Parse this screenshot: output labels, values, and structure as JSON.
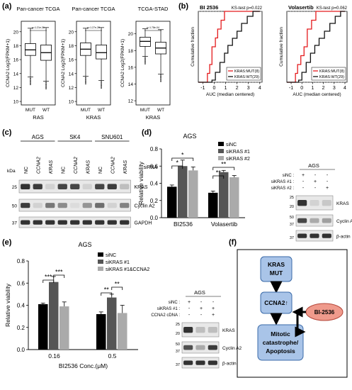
{
  "panels": {
    "a": {
      "letter": "(a)",
      "boxplots": [
        {
          "title": "Pan-cancer TCGA",
          "ylabel": "CCNA2 Log2(FPKM+1)",
          "xlabel": "RAS",
          "pvalue": "p=1.21e-31",
          "groups": [
            "MUT",
            "WT"
          ],
          "yticks": [
            "10",
            "12",
            "14",
            "16",
            "18",
            "20"
          ],
          "ylim": [
            9.5,
            21.5
          ],
          "boxes": [
            {
              "min": 13.5,
              "q1": 16.6,
              "median": 17.4,
              "q3": 18.3,
              "max": 20.5
            },
            {
              "min": 12.9,
              "q1": 15.9,
              "median": 17.0,
              "q3": 18.1,
              "max": 20.6
            }
          ]
        },
        {
          "title": "Pan-cancer TCGA",
          "ylabel": "CCNA2 Log2(FPKM+1)",
          "xlabel": "KRAS",
          "pvalue": "p=1.27e-20",
          "groups": [
            "MUT",
            "WT"
          ],
          "yticks": [
            "10",
            "12",
            "14",
            "16",
            "18",
            "20"
          ],
          "ylim": [
            9.5,
            21.5
          ],
          "boxes": [
            {
              "min": 13.6,
              "q1": 16.6,
              "median": 17.5,
              "q3": 18.4,
              "max": 20.5
            },
            {
              "min": 13.0,
              "q1": 16.1,
              "median": 17.0,
              "q3": 18.1,
              "max": 20.6
            }
          ]
        },
        {
          "title": "TCGA-STAD",
          "ylabel": "CCNA2 Log2(FPKM+1)",
          "xlabel": "KRAS",
          "pvalue": "p=1.78e-04",
          "groups": [
            "MUT",
            "WT"
          ],
          "yticks": [
            "12",
            "14",
            "16",
            "18",
            "20"
          ],
          "ylim": [
            11.5,
            21.5
          ],
          "boxes": [
            {
              "min": 17.3,
              "q1": 18.5,
              "median": 19.1,
              "q3": 19.6,
              "max": 20.6
            },
            {
              "min": 15.2,
              "q1": 17.6,
              "median": 18.3,
              "q3": 19.0,
              "max": 20.5
            }
          ]
        }
      ]
    },
    "b": {
      "letter": "(b)",
      "ylabel": "Cumulative fraction",
      "xlabel": "AUC (median centered)",
      "xticks": [
        "-1",
        "0",
        "1",
        "2",
        "3",
        "4"
      ],
      "plots": [
        {
          "title": "BI 2536",
          "test": "KS-test p=0.022",
          "legend": [
            "KRAS:MUT(8)",
            "KRAS:WT(29)"
          ],
          "series": [
            {
              "name": "KRAS:MUT(8)",
              "color": "#e41a1c",
              "x": [
                -1.4,
                -0.6,
                -0.4,
                -0.2,
                0.1,
                0.3,
                0.6,
                0.9,
                4.0
              ],
              "y": [
                0.0,
                0.125,
                0.25,
                0.5,
                0.625,
                0.75,
                0.875,
                1.0,
                1.0
              ]
            },
            {
              "name": "KRAS:WT(29)",
              "color": "#111111",
              "x": [
                -1.4,
                -0.2,
                0.1,
                0.5,
                0.9,
                1.2,
                1.6,
                2.0,
                2.4,
                2.9,
                3.4,
                4.0
              ],
              "y": [
                0.0,
                0.03,
                0.14,
                0.28,
                0.41,
                0.52,
                0.62,
                0.72,
                0.83,
                0.93,
                1.0,
                1.0
              ]
            }
          ]
        },
        {
          "title": "Volasertib",
          "test": "KS-test p=0.062",
          "legend": [
            "KRAS:MUT(8)",
            "KRAS:WT(29)"
          ],
          "series": [
            {
              "name": "KRAS:MUT(8)",
              "color": "#e41a1c",
              "x": [
                -1.4,
                -0.6,
                -0.4,
                -0.1,
                0.2,
                0.5,
                0.9,
                1.3,
                4.0
              ],
              "y": [
                0.0,
                0.125,
                0.25,
                0.375,
                0.5,
                0.75,
                0.875,
                1.0,
                1.0
              ]
            },
            {
              "name": "KRAS:WT(29)",
              "color": "#111111",
              "x": [
                -1.4,
                -0.3,
                0.0,
                0.4,
                0.8,
                1.2,
                1.6,
                2.1,
                2.6,
                3.1,
                3.6,
                4.0
              ],
              "y": [
                0.0,
                0.03,
                0.14,
                0.28,
                0.41,
                0.52,
                0.62,
                0.72,
                0.83,
                0.93,
                1.0,
                1.0
              ]
            }
          ]
        }
      ]
    },
    "c": {
      "letter": "(c)",
      "cell_lines": [
        "AGS",
        "SK4",
        "SNU601"
      ],
      "lanes": [
        "NC",
        "CCNA2",
        "KRAS",
        "NC",
        "CCNA2",
        "KRAS",
        "NC",
        "CCNA2",
        "KRAS"
      ],
      "sirna_label": "siRNA",
      "kda_label": "kDa",
      "markers": [
        "25",
        "50",
        "37"
      ],
      "bands": [
        "KRAS",
        "Cyclin A2",
        "GAPDH"
      ]
    },
    "d": {
      "letter": "(d)",
      "title": "AGS",
      "ylabel": "Relative viability",
      "yticks": [
        "0.0",
        "0.2",
        "0.4",
        "0.6",
        "0.8"
      ],
      "legend": [
        "siNC",
        "siKRAS #1",
        "siKRAS #2"
      ],
      "blot_title": "AGS",
      "blot_rows": [
        "siNC :",
        "siKRAS #1 :",
        "siKRAS #2 :"
      ],
      "blot_signs": [
        [
          "+",
          "-",
          "-"
        ],
        [
          "-",
          "+",
          "-"
        ],
        [
          "-",
          "-",
          "+"
        ]
      ],
      "blot_markers": [
        "25",
        "20",
        "50",
        "37",
        "37"
      ],
      "blot_bands": [
        "KRAS",
        "Cyclin A2",
        "β-actin"
      ],
      "sig": [
        "*",
        "*",
        "**",
        "**"
      ]
    },
    "e": {
      "letter": "(e)",
      "title": "AGS",
      "ylabel": "Relative viability",
      "xlabel": "BI2536 Conc.(μM)",
      "yticks": [
        "0.0",
        "0.2",
        "0.4",
        "0.6",
        "0.8"
      ],
      "legend": [
        "siNC",
        "siKRAS #1",
        "siKRAS #1&CCNA2"
      ],
      "blot_title": "AGS",
      "blot_rows": [
        "siNC :",
        "siKRAS #1 :",
        "CCNA2 cDNA :"
      ],
      "blot_signs": [
        [
          "+",
          "-",
          "-"
        ],
        [
          "-",
          "+",
          "+"
        ],
        [
          "-",
          "-",
          "+"
        ]
      ],
      "blot_markers": [
        "25",
        "20",
        "50",
        "37",
        "37"
      ],
      "blot_bands": [
        "KRAS",
        "Cyclin A2",
        "β-actin"
      ],
      "sig": [
        "***",
        "***",
        "**",
        "**"
      ]
    },
    "f": {
      "letter": "(f)",
      "nodes": [
        "KRAS",
        "MUT",
        "CCNA2↑",
        "Mitotic",
        "catastrophe/",
        "Apoptosis",
        "BI-2536"
      ]
    }
  },
  "chart_data": [
    {
      "type": "bar",
      "title": "AGS",
      "categories": [
        "BI2536",
        "Volasertib"
      ],
      "ylabel": "Relative viability",
      "ylim": [
        0,
        0.8
      ],
      "series": [
        {
          "name": "siNC",
          "color": "#000000",
          "values": [
            0.36,
            0.29
          ],
          "err": [
            0.02,
            0.02
          ]
        },
        {
          "name": "siKRAS #1",
          "color": "#555555",
          "values": [
            0.6,
            0.53
          ],
          "err": [
            0.07,
            0.02
          ]
        },
        {
          "name": "siKRAS #2",
          "color": "#aaaaaa",
          "values": [
            0.55,
            0.47
          ],
          "err": [
            0.04,
            0.02
          ]
        }
      ]
    },
    {
      "type": "bar",
      "title": "AGS",
      "categories": [
        "0.16",
        "0.5"
      ],
      "xlabel": "BI2536 Conc.(μM)",
      "ylabel": "Relative viability",
      "ylim": [
        0,
        0.8
      ],
      "series": [
        {
          "name": "siNC",
          "color": "#000000",
          "values": [
            0.41,
            0.32
          ],
          "err": [
            0.01,
            0.02
          ]
        },
        {
          "name": "siKRAS #1",
          "color": "#555555",
          "values": [
            0.61,
            0.47
          ],
          "err": [
            0.05,
            0.03
          ]
        },
        {
          "name": "siKRAS #1&CCNA2",
          "color": "#aaaaaa",
          "values": [
            0.39,
            0.33
          ],
          "err": [
            0.04,
            0.07
          ]
        }
      ]
    }
  ]
}
